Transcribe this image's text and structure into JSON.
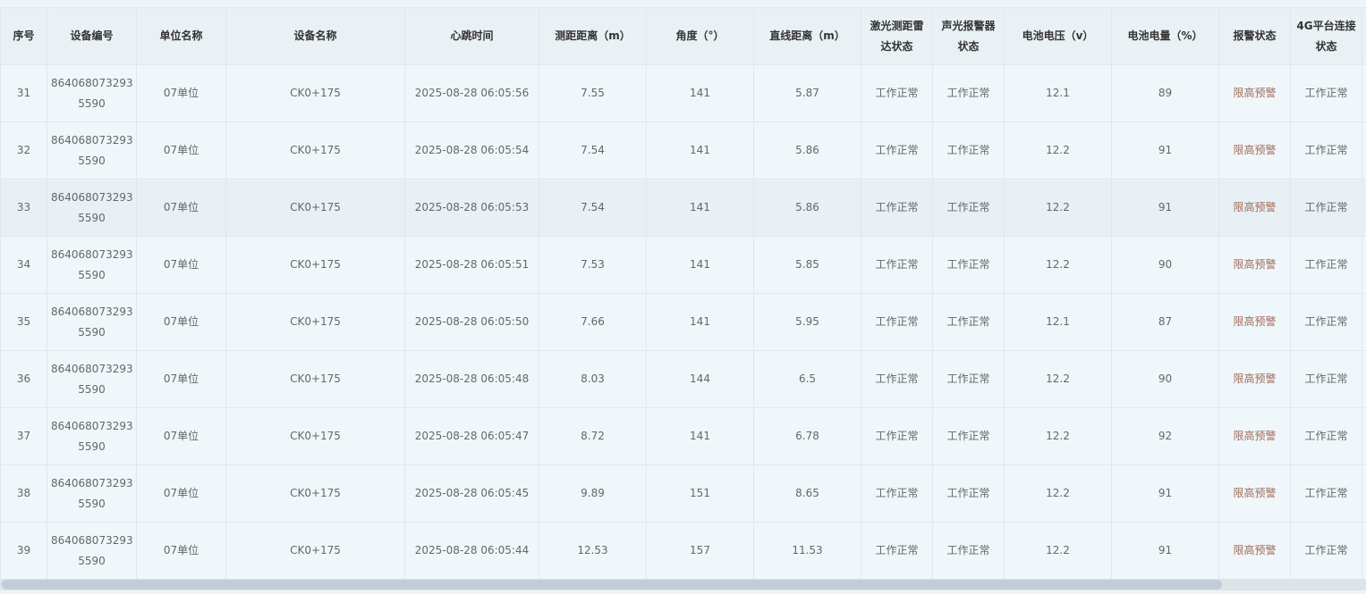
{
  "columns": [
    "序号",
    "设备编号",
    "单位名称",
    "设备名称",
    "心跳时间",
    "测距距离（m）",
    "角度（°）",
    "直线距离（m）",
    "激光测距雷达状态",
    "声光报警器状态",
    "电池电压（v）",
    "电池电量（%）",
    "报警状态",
    "4G平台连接状态",
    ""
  ],
  "rows": [
    [
      "31",
      "864068073293 5590",
      "07单位",
      "CK0+175",
      "2025-08-28 06:05:56",
      "7.55",
      "141",
      "5.87",
      "工作正常",
      "工作正常",
      "12.1",
      "89",
      "限高预警",
      "工作正常"
    ],
    [
      "32",
      "864068073293 5590",
      "07单位",
      "CK0+175",
      "2025-08-28 06:05:54",
      "7.54",
      "141",
      "5.86",
      "工作正常",
      "工作正常",
      "12.2",
      "91",
      "限高预警",
      "工作正常"
    ],
    [
      "33",
      "864068073293 5590",
      "07单位",
      "CK0+175",
      "2025-08-28 06:05:53",
      "7.54",
      "141",
      "5.86",
      "工作正常",
      "工作正常",
      "12.2",
      "91",
      "限高预警",
      "工作正常"
    ],
    [
      "34",
      "864068073293 5590",
      "07单位",
      "CK0+175",
      "2025-08-28 06:05:51",
      "7.53",
      "141",
      "5.85",
      "工作正常",
      "工作正常",
      "12.2",
      "90",
      "限高预警",
      "工作正常"
    ],
    [
      "35",
      "864068073293 5590",
      "07单位",
      "CK0+175",
      "2025-08-28 06:05:50",
      "7.66",
      "141",
      "5.95",
      "工作正常",
      "工作正常",
      "12.1",
      "87",
      "限高预警",
      "工作正常"
    ],
    [
      "36",
      "864068073293 5590",
      "07单位",
      "CK0+175",
      "2025-08-28 06:05:48",
      "8.03",
      "144",
      "6.5",
      "工作正常",
      "工作正常",
      "12.2",
      "90",
      "限高预警",
      "工作正常"
    ],
    [
      "37",
      "864068073293 5590",
      "07单位",
      "CK0+175",
      "2025-08-28 06:05:47",
      "8.72",
      "141",
      "6.78",
      "工作正常",
      "工作正常",
      "12.2",
      "92",
      "限高预警",
      "工作正常"
    ],
    [
      "38",
      "864068073293 5590",
      "07单位",
      "CK0+175",
      "2025-08-28 06:05:45",
      "9.89",
      "151",
      "8.65",
      "工作正常",
      "工作正常",
      "12.2",
      "91",
      "限高预警",
      "工作正常"
    ],
    [
      "39",
      "864068073293 5590",
      "07单位",
      "CK0+175",
      "2025-08-28 06:05:44",
      "12.53",
      "157",
      "11.53",
      "工作正常",
      "工作正常",
      "12.2",
      "91",
      "限高预警",
      "工作正常"
    ]
  ],
  "hovered_row": "33"
}
